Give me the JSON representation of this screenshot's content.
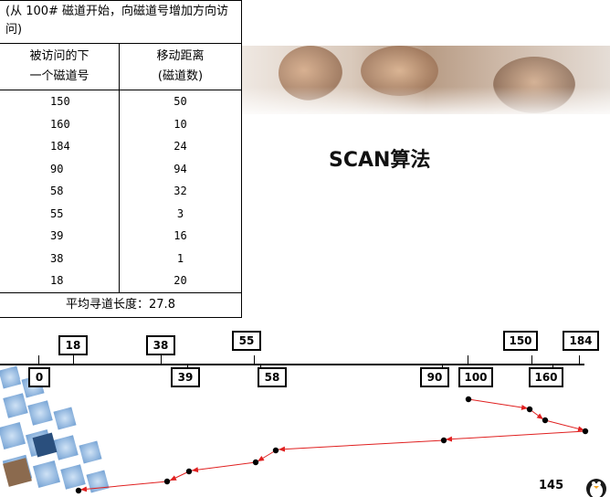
{
  "slide": {
    "title": "SCAN算法",
    "page_number": "145"
  },
  "table": {
    "note": "(从 100# 磁道开始，向磁道号增加方向访问)",
    "header_col1_line1": "被访问的下",
    "header_col1_line2": "一个磁道号",
    "header_col2_line1": "移动距离",
    "header_col2_line2": "(磁道数)",
    "rows": [
      {
        "track": "150",
        "distance": "50"
      },
      {
        "track": "160",
        "distance": "10"
      },
      {
        "track": "184",
        "distance": "24"
      },
      {
        "track": "90",
        "distance": "94"
      },
      {
        "track": "58",
        "distance": "32"
      },
      {
        "track": "55",
        "distance": "3"
      },
      {
        "track": "39",
        "distance": "16"
      },
      {
        "track": "38",
        "distance": "1"
      },
      {
        "track": "18",
        "distance": "20"
      }
    ],
    "average": "平均寻道长度：27.8"
  },
  "axis_labels": {
    "above": [
      "18",
      "38",
      "55",
      "150",
      "184"
    ],
    "below": [
      "0",
      "39",
      "58",
      "90",
      "100",
      "160"
    ]
  },
  "colors": {
    "arrow": "#e02020",
    "point": "#000000"
  },
  "icons": [
    "penguin-icon"
  ]
}
